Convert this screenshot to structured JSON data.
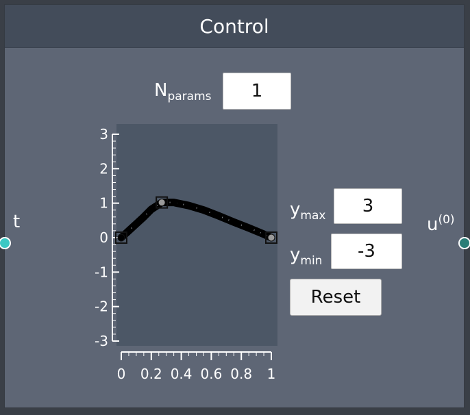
{
  "node": {
    "title": "Control"
  },
  "params": {
    "label_main": "N",
    "label_sub": "params",
    "value": "1"
  },
  "ymax": {
    "label_main": "y",
    "label_sub": "max",
    "value": "3"
  },
  "ymin": {
    "label_main": "y",
    "label_sub": "min",
    "value": "-3"
  },
  "reset_label": "Reset",
  "ports": {
    "input": {
      "label": "t",
      "color": "#3cc8c4"
    },
    "output": {
      "label_main": "u",
      "label_sup": "(0)",
      "color": "#2a7d77"
    }
  },
  "chart_data": {
    "type": "line",
    "x": [
      0,
      0.05,
      0.1,
      0.15,
      0.2,
      0.27,
      0.35,
      0.45,
      0.55,
      0.65,
      0.75,
      0.85,
      0.95,
      1
    ],
    "y": [
      0,
      0.2,
      0.4,
      0.6,
      0.82,
      1.02,
      1.02,
      0.93,
      0.8,
      0.63,
      0.45,
      0.28,
      0.1,
      0
    ],
    "control_points": {
      "x": [
        0,
        0.27,
        1
      ],
      "y": [
        0,
        1.02,
        0
      ]
    },
    "xlim": [
      0,
      1
    ],
    "ylim": [
      -3,
      3
    ],
    "x_ticks": [
      "0",
      "0.2",
      "0.4",
      "0.6",
      "0.8",
      "1"
    ],
    "y_ticks": [
      "3",
      "2",
      "1",
      "0",
      "-1",
      "-2",
      "-3"
    ],
    "plot_bg": "#4c5766",
    "line_color": "#000000"
  }
}
